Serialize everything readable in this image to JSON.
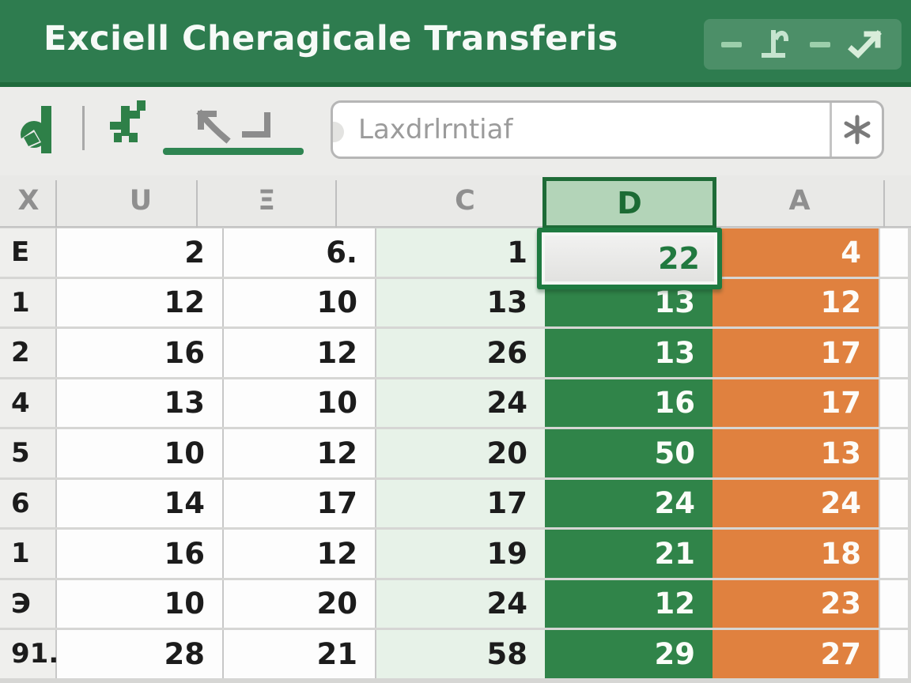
{
  "titlebar": {
    "title": "Exciell Cheragicale Transferis",
    "control_icons": [
      "dash-icon",
      "pin-icon",
      "dash-icon",
      "arrow-up-right-icon"
    ],
    "colors": {
      "bar": "#2e7c4f",
      "strip": "#1f6a3c",
      "controls_panel": "#4c8f68"
    }
  },
  "toolbar": {
    "icons": [
      "app-logo-icon",
      "paste-cross-icon",
      "cursor-arrow-icon",
      "corner-bracket-icon"
    ],
    "formula_bar": {
      "value": "Laxdrlrntiaf",
      "action_icon": "asterisk-icon"
    },
    "active_tab_underline_color": "#2f8552"
  },
  "grid": {
    "column_headers": [
      "X",
      "U",
      "Ξ",
      "C",
      "D",
      "A"
    ],
    "selected_column": "D",
    "selected_cell": {
      "column": "D",
      "row": 1,
      "value": "22"
    },
    "rows": [
      {
        "header": "E",
        "cells": [
          "2",
          "6.",
          "1",
          "22",
          "4"
        ]
      },
      {
        "header": "1",
        "cells": [
          "12",
          "10",
          "13",
          "13",
          "12"
        ]
      },
      {
        "header": "2",
        "cells": [
          "16",
          "12",
          "26",
          "13",
          "17"
        ]
      },
      {
        "header": "4",
        "cells": [
          "13",
          "10",
          "24",
          "16",
          "17"
        ]
      },
      {
        "header": "5",
        "cells": [
          "10",
          "12",
          "20",
          "50",
          "13"
        ]
      },
      {
        "header": "6",
        "cells": [
          "14",
          "17",
          "17",
          "24",
          "24"
        ]
      },
      {
        "header": "1",
        "cells": [
          "16",
          "12",
          "19",
          "21",
          "18"
        ]
      },
      {
        "header": "Э",
        "cells": [
          "10",
          "20",
          "24",
          "12",
          "23"
        ]
      },
      {
        "header": "91.",
        "cells": [
          "28",
          "21",
          "58",
          "29",
          "27"
        ]
      }
    ],
    "colors": {
      "column_c_tint": "#e7f2e8",
      "column_d_green": "#308449",
      "column_a_orange": "#e0813f",
      "selection_border": "#1e7a40",
      "selected_header_fill": "#b3d4b8",
      "header_bg": "#e9e9e7",
      "row_header_bg": "#efefed"
    }
  }
}
